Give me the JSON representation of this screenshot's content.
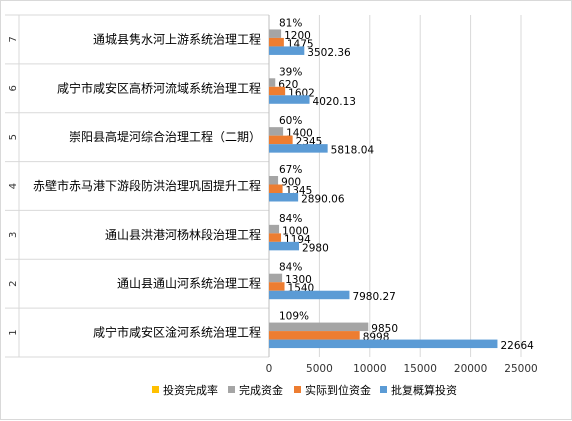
{
  "chart_data": {
    "type": "bar",
    "orientation": "horizontal",
    "categories": [
      {
        "index": "1",
        "name": "咸宁市咸安区淦河系统治理工程"
      },
      {
        "index": "2",
        "name": "通山县通山河系统治理工程"
      },
      {
        "index": "3",
        "name": "通山县洪港河杨林段治理工程"
      },
      {
        "index": "4",
        "name": "赤壁市赤马港下游段防洪治理巩固提升工程"
      },
      {
        "index": "5",
        "name": "崇阳县高堤河综合治理工程（二期）"
      },
      {
        "index": "6",
        "name": "咸宁市咸安区高桥河流域系统治理工程"
      },
      {
        "index": "7",
        "name": "通城县隽水河上游系统治理工程"
      }
    ],
    "series": [
      {
        "name": "投资完成率",
        "color": "#ffc000",
        "labels": [
          "109%",
          "84%",
          "84%",
          "67%",
          "60%",
          "39%",
          "81%"
        ]
      },
      {
        "name": "完成资金",
        "color": "#a5a5a5",
        "values": [
          9850,
          1300,
          1000,
          900,
          1400,
          620,
          1200
        ],
        "labels": [
          "9850",
          "1300",
          "1000",
          "900",
          "1400",
          "620",
          "1200"
        ]
      },
      {
        "name": "实际到位资金",
        "color": "#ed7d31",
        "values": [
          8998,
          1540,
          1194,
          1345,
          2345,
          1602,
          1475
        ],
        "labels": [
          "8998",
          "1540",
          "1194",
          "1345",
          "2345",
          "1602",
          "1475"
        ]
      },
      {
        "name": "批复概算投资",
        "color": "#5b9bd5",
        "values": [
          22664,
          7980.27,
          2980,
          2890.06,
          5818.04,
          4020.13,
          3502.36
        ],
        "labels": [
          "22664",
          "7980.27",
          "2980",
          "2890.06",
          "5818.04",
          "4020.13",
          "3502.36"
        ]
      }
    ],
    "xlim": [
      0,
      25000
    ],
    "xticks": [
      "0",
      "5000",
      "10000",
      "15000",
      "20000",
      "25000"
    ],
    "legend_position": "bottom",
    "grid": "vertical"
  }
}
